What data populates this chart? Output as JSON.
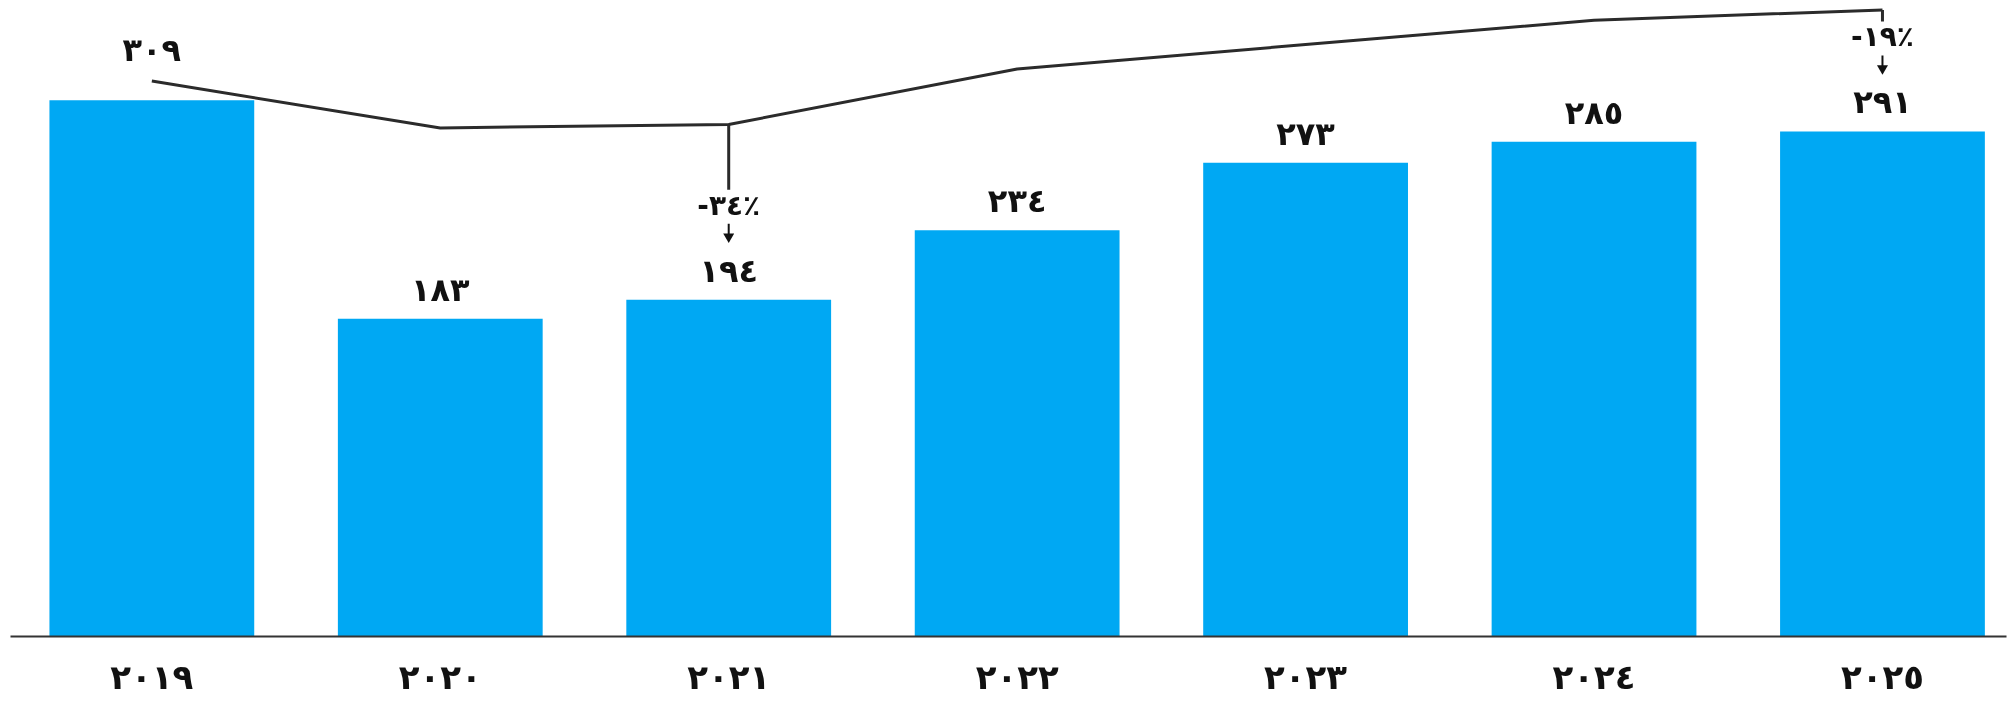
{
  "chart_data": {
    "type": "bar",
    "categories": [
      "٢٠١٩",
      "٢٠٢٠",
      "٢٠٢١",
      "٢٠٢٢",
      "٢٠٢٣",
      "٢٠٢٤",
      "٢٠٢٥"
    ],
    "series": [
      {
        "color": "#00a8f3",
        "values": [
          309,
          183,
          194,
          234,
          273,
          285,
          291
        ],
        "value_labels": [
          "٣٠٩",
          "١٨٣",
          "١٩٤",
          "٢٣٤",
          "٢٧٣",
          "٢٨٥",
          "٢٩١"
        ]
      },
      {
        "type": "line",
        "color": "#2b2b2b",
        "values": [
          320,
          293,
          295,
          327,
          341,
          355,
          361
        ]
      }
    ],
    "annotations": [
      {
        "text": "-٣٤٪",
        "x": "٢٠٢١",
        "y": 194
      },
      {
        "text": "-١٩٪",
        "x": "٢٠٢٥",
        "y": 291
      }
    ],
    "grid": false,
    "marker": "none",
    "line_style": "solid"
  }
}
